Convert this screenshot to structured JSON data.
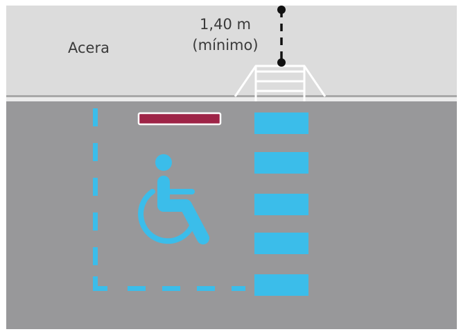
{
  "labels": {
    "sidewalk": "Acera",
    "width_value": "1,40 m",
    "width_note": "(mínimo)"
  },
  "colors": {
    "sidewalk": "#dcdcdc",
    "road": "#98989a",
    "curb_line": "#a9a9a9",
    "ramp_lines": "#ffffff",
    "marking_blue": "#3bbdea",
    "sign_bar": "#9e2447",
    "measure": "#111111",
    "text": "#3a3a3a"
  },
  "icons": {
    "accessibility": "wheelchair-icon"
  },
  "elements": {
    "crosswalk_stripes": 5,
    "min_clear_width": "1,40 m"
  }
}
